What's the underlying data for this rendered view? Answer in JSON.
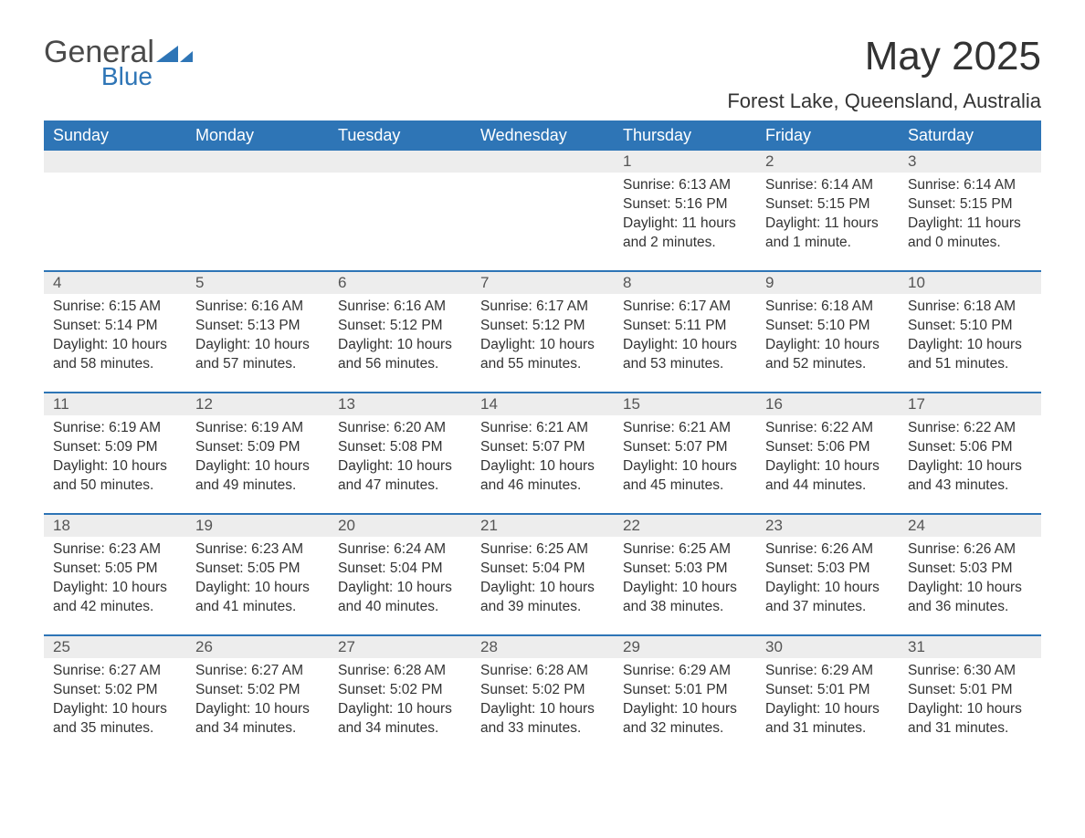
{
  "logo": {
    "general": "General",
    "blue": "Blue",
    "accent_color": "#2e75b6"
  },
  "title": "May 2025",
  "location": "Forest Lake, Queensland, Australia",
  "colors": {
    "header_bg": "#2e75b6",
    "header_fg": "#ffffff",
    "daynum_bg": "#ededed",
    "text": "#333333",
    "rule": "#2e75b6"
  },
  "weekdays": [
    "Sunday",
    "Monday",
    "Tuesday",
    "Wednesday",
    "Thursday",
    "Friday",
    "Saturday"
  ],
  "first_weekday_index": 4,
  "days": [
    {
      "n": 1,
      "sunrise": "6:13 AM",
      "sunset": "5:16 PM",
      "daylight": "11 hours and 2 minutes."
    },
    {
      "n": 2,
      "sunrise": "6:14 AM",
      "sunset": "5:15 PM",
      "daylight": "11 hours and 1 minute."
    },
    {
      "n": 3,
      "sunrise": "6:14 AM",
      "sunset": "5:15 PM",
      "daylight": "11 hours and 0 minutes."
    },
    {
      "n": 4,
      "sunrise": "6:15 AM",
      "sunset": "5:14 PM",
      "daylight": "10 hours and 58 minutes."
    },
    {
      "n": 5,
      "sunrise": "6:16 AM",
      "sunset": "5:13 PM",
      "daylight": "10 hours and 57 minutes."
    },
    {
      "n": 6,
      "sunrise": "6:16 AM",
      "sunset": "5:12 PM",
      "daylight": "10 hours and 56 minutes."
    },
    {
      "n": 7,
      "sunrise": "6:17 AM",
      "sunset": "5:12 PM",
      "daylight": "10 hours and 55 minutes."
    },
    {
      "n": 8,
      "sunrise": "6:17 AM",
      "sunset": "5:11 PM",
      "daylight": "10 hours and 53 minutes."
    },
    {
      "n": 9,
      "sunrise": "6:18 AM",
      "sunset": "5:10 PM",
      "daylight": "10 hours and 52 minutes."
    },
    {
      "n": 10,
      "sunrise": "6:18 AM",
      "sunset": "5:10 PM",
      "daylight": "10 hours and 51 minutes."
    },
    {
      "n": 11,
      "sunrise": "6:19 AM",
      "sunset": "5:09 PM",
      "daylight": "10 hours and 50 minutes."
    },
    {
      "n": 12,
      "sunrise": "6:19 AM",
      "sunset": "5:09 PM",
      "daylight": "10 hours and 49 minutes."
    },
    {
      "n": 13,
      "sunrise": "6:20 AM",
      "sunset": "5:08 PM",
      "daylight": "10 hours and 47 minutes."
    },
    {
      "n": 14,
      "sunrise": "6:21 AM",
      "sunset": "5:07 PM",
      "daylight": "10 hours and 46 minutes."
    },
    {
      "n": 15,
      "sunrise": "6:21 AM",
      "sunset": "5:07 PM",
      "daylight": "10 hours and 45 minutes."
    },
    {
      "n": 16,
      "sunrise": "6:22 AM",
      "sunset": "5:06 PM",
      "daylight": "10 hours and 44 minutes."
    },
    {
      "n": 17,
      "sunrise": "6:22 AM",
      "sunset": "5:06 PM",
      "daylight": "10 hours and 43 minutes."
    },
    {
      "n": 18,
      "sunrise": "6:23 AM",
      "sunset": "5:05 PM",
      "daylight": "10 hours and 42 minutes."
    },
    {
      "n": 19,
      "sunrise": "6:23 AM",
      "sunset": "5:05 PM",
      "daylight": "10 hours and 41 minutes."
    },
    {
      "n": 20,
      "sunrise": "6:24 AM",
      "sunset": "5:04 PM",
      "daylight": "10 hours and 40 minutes."
    },
    {
      "n": 21,
      "sunrise": "6:25 AM",
      "sunset": "5:04 PM",
      "daylight": "10 hours and 39 minutes."
    },
    {
      "n": 22,
      "sunrise": "6:25 AM",
      "sunset": "5:03 PM",
      "daylight": "10 hours and 38 minutes."
    },
    {
      "n": 23,
      "sunrise": "6:26 AM",
      "sunset": "5:03 PM",
      "daylight": "10 hours and 37 minutes."
    },
    {
      "n": 24,
      "sunrise": "6:26 AM",
      "sunset": "5:03 PM",
      "daylight": "10 hours and 36 minutes."
    },
    {
      "n": 25,
      "sunrise": "6:27 AM",
      "sunset": "5:02 PM",
      "daylight": "10 hours and 35 minutes."
    },
    {
      "n": 26,
      "sunrise": "6:27 AM",
      "sunset": "5:02 PM",
      "daylight": "10 hours and 34 minutes."
    },
    {
      "n": 27,
      "sunrise": "6:28 AM",
      "sunset": "5:02 PM",
      "daylight": "10 hours and 34 minutes."
    },
    {
      "n": 28,
      "sunrise": "6:28 AM",
      "sunset": "5:02 PM",
      "daylight": "10 hours and 33 minutes."
    },
    {
      "n": 29,
      "sunrise": "6:29 AM",
      "sunset": "5:01 PM",
      "daylight": "10 hours and 32 minutes."
    },
    {
      "n": 30,
      "sunrise": "6:29 AM",
      "sunset": "5:01 PM",
      "daylight": "10 hours and 31 minutes."
    },
    {
      "n": 31,
      "sunrise": "6:30 AM",
      "sunset": "5:01 PM",
      "daylight": "10 hours and 31 minutes."
    }
  ],
  "labels": {
    "sunrise": "Sunrise",
    "sunset": "Sunset",
    "daylight": "Daylight"
  }
}
